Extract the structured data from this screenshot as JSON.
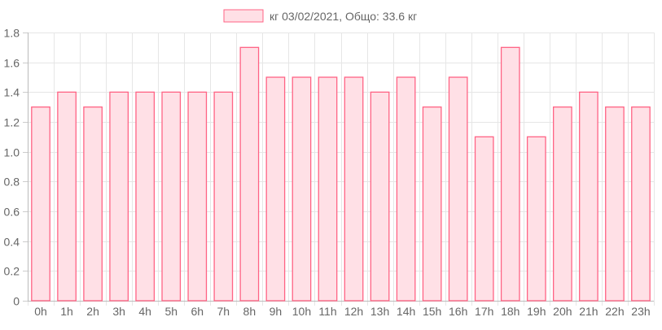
{
  "chart_data": {
    "type": "bar",
    "title": "",
    "xlabel": "",
    "ylabel": "",
    "legend": {
      "position": "top",
      "entries": [
        "кг 03/02/2021, Общо: 33.6 кг"
      ]
    },
    "categories": [
      "0h",
      "1h",
      "2h",
      "3h",
      "4h",
      "5h",
      "6h",
      "7h",
      "8h",
      "9h",
      "10h",
      "11h",
      "12h",
      "13h",
      "14h",
      "15h",
      "16h",
      "17h",
      "18h",
      "19h",
      "20h",
      "21h",
      "22h",
      "23h"
    ],
    "series": [
      {
        "name": "кг 03/02/2021, Общо: 33.6 кг",
        "values": [
          1.3,
          1.4,
          1.3,
          1.4,
          1.4,
          1.4,
          1.4,
          1.4,
          1.7,
          1.5,
          1.5,
          1.5,
          1.5,
          1.4,
          1.5,
          1.3,
          1.5,
          1.1,
          1.7,
          1.1,
          1.3,
          1.4,
          1.3,
          1.3
        ],
        "fill_color": "#ffe0e6",
        "border_color": "#ff6384"
      }
    ],
    "ylim": [
      0,
      1.8
    ],
    "yticks": [
      "0",
      "0.2",
      "0.4",
      "0.6",
      "0.8",
      "1.0",
      "1.2",
      "1.4",
      "1.6",
      "1.8"
    ],
    "grid": true
  }
}
